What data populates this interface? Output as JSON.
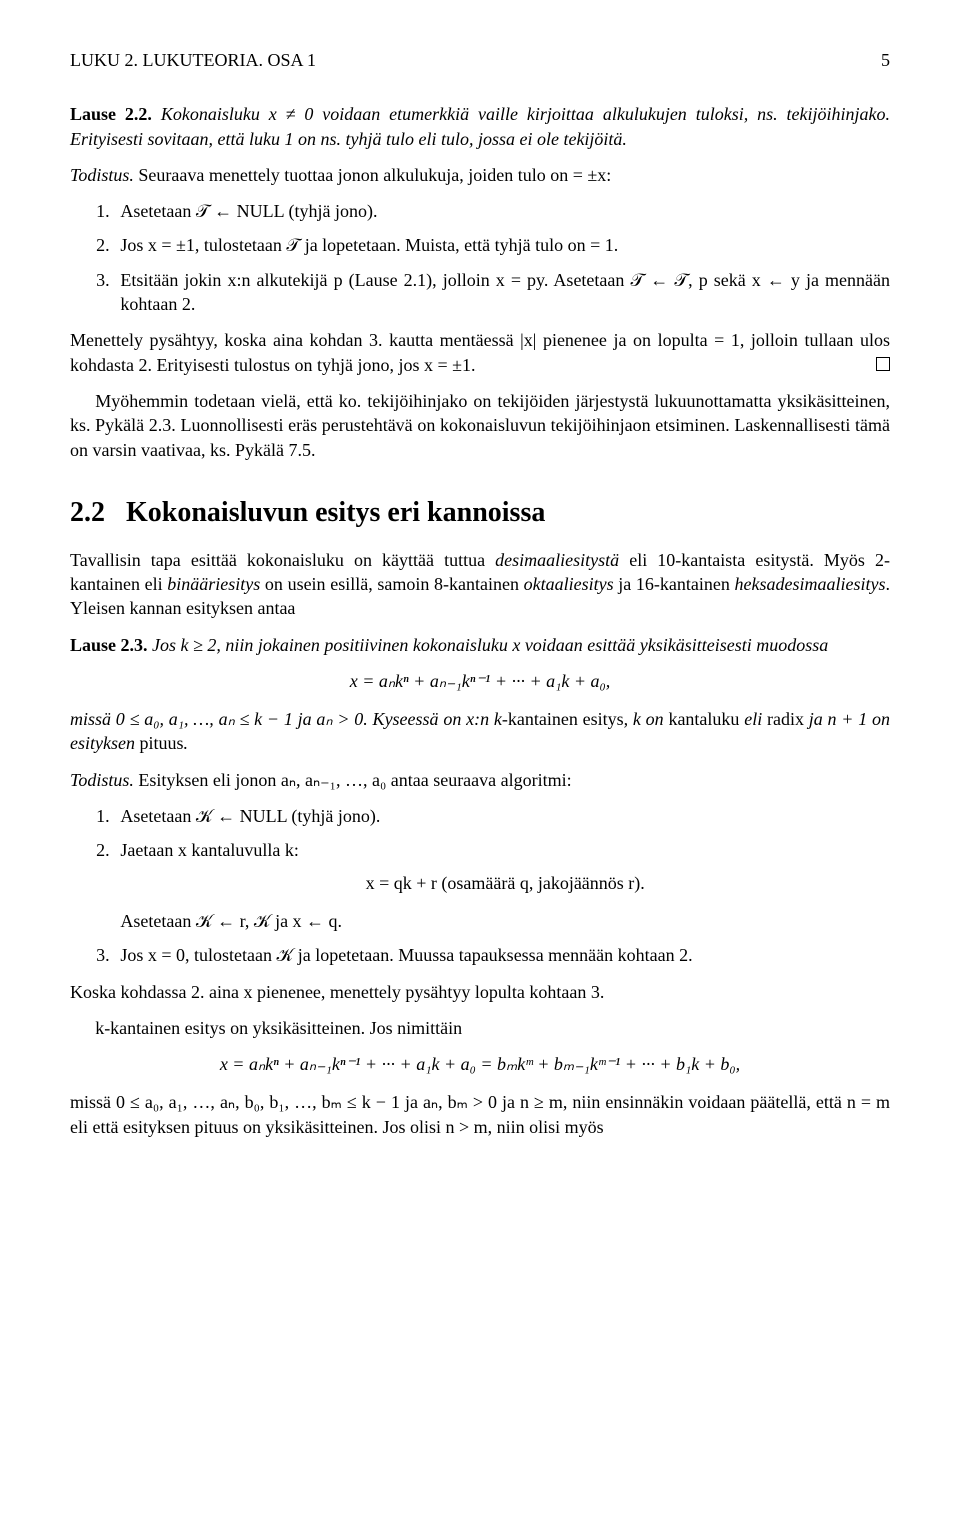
{
  "running_head": {
    "left": "LUKU 2. LUKUTEORIA. OSA 1",
    "page": "5"
  },
  "para1_label": "Lause 2.2.",
  "para1_rest": " Kokonaisluku x ≠ 0 voidaan etumerkkiä vaille kirjoittaa alkulukujen tuloksi, ns. tekijöihinjako. Erityisesti sovitaan, että luku 1 on ns. tyhjä tulo eli tulo, jossa ei ole tekijöitä.",
  "proof_label": "Todistus.",
  "proof_intro": "  Seuraava menettely tuottaa jonon alkulukuja, joiden tulo on = ±x:",
  "list1": [
    "Asetetaan 𝒯 ← NULL (tyhjä jono).",
    "Jos x = ±1, tulostetaan 𝒯 ja lopetetaan. Muista, että tyhjä tulo on = 1.",
    "Etsitään jokin x:n alkutekijä p (Lause 2.1), jolloin x = py. Asetetaan 𝒯 ← 𝒯, p sekä x ← y ja mennään kohtaan 2."
  ],
  "para_menettely_a": "Menettely pysähtyy, koska aina kohdan 3. kautta mentäessä |x| pienenee ja on lopulta = 1, jolloin tullaan ulos kohdasta 2. Erityisesti tulostus on tyhjä jono, jos x = ±1.",
  "para_myohemmin": "Myöhemmin todetaan vielä, että ko. tekijöihinjako on tekijöiden järjestystä lukuunottamatta yksikäsitteinen, ks. Pykälä 2.3. Luonnollisesti eräs perustehtävä on kokonaisluvun tekijöihinjaon etsiminen. Laskennallisesti tämä on varsin vaativaa, ks. Pykälä 7.5.",
  "section_num": "2.2",
  "section_title": "Kokonaisluvun esitys eri kannoissa",
  "para_tavallisin_a": "Tavallisin tapa esittää kokonaisluku on käyttää tuttua ",
  "para_tavallisin_b": "desimaaliesitystä",
  "para_tavallisin_c": " eli 10-kantaista esitystä. Myös 2-kantainen eli ",
  "para_tavallisin_d": "binääriesitys",
  "para_tavallisin_e": " on usein esillä, samoin 8-kantainen ",
  "para_tavallisin_f": "oktaaliesitys",
  "para_tavallisin_g": " ja 16-kantainen ",
  "para_tavallisin_h": "heksadesimaaliesitys",
  "para_tavallisin_i": ". Yleisen kannan esityksen antaa",
  "lause23_label": "Lause 2.3.",
  "lause23_a": " Jos k ≥ 2, niin jokainen positiivinen kokonaisluku x voidaan esittää yksikäsitteisesti muodossa",
  "eq1": "x = aₙkⁿ + aₙ₋₁kⁿ⁻¹ + ··· + a₁k + a₀,",
  "lause23_b_a": "missä 0 ≤ a₀, a₁, …, aₙ ≤ k − 1 ja aₙ > 0. Kyseessä on x:n k",
  "lause23_b_b": "-kantainen esitys",
  "lause23_b_c": ", k on ",
  "lause23_b_d": "kantaluku",
  "lause23_b_e": " eli ",
  "lause23_b_f": "radix",
  "lause23_b_g": " ja n + 1 on esityksen ",
  "lause23_b_h": "pituus",
  "lause23_b_i": ".",
  "proof2_label": "Todistus.",
  "proof2_intro": "  Esityksen eli jonon aₙ, aₙ₋₁, …, a₀ antaa seuraava algoritmi:",
  "list2_1": "Asetetaan 𝒦 ← NULL (tyhjä jono).",
  "list2_2": "Jaetaan x kantaluvulla k:",
  "eq2": "x = qk + r    (osamäärä q, jakojäännös r).",
  "list2_2b": "Asetetaan 𝒦 ← r, 𝒦 ja x ← q.",
  "list2_3": "Jos x = 0, tulostetaan 𝒦 ja lopetetaan. Muussa tapauksessa mennään kohtaan 2.",
  "para_koska": "Koska kohdassa 2. aina x pienenee, menettely pysähtyy lopulta kohtaan 3.",
  "para_kkant": "k-kantainen esitys on yksikäsitteinen. Jos nimittäin",
  "eq3": "x = aₙkⁿ + aₙ₋₁kⁿ⁻¹ + ··· + a₁k + a₀ = bₘkᵐ + bₘ₋₁kᵐ⁻¹ + ··· + b₁k + b₀,",
  "para_last": "missä 0 ≤ a₀, a₁, …, aₙ, b₀, b₁, …, bₘ ≤ k − 1 ja aₙ, bₘ > 0 ja n ≥ m, niin ensinnäkin voidaan päätellä, että n = m eli että esityksen pituus on yksikäsitteinen. Jos olisi n > m, niin olisi myös"
}
